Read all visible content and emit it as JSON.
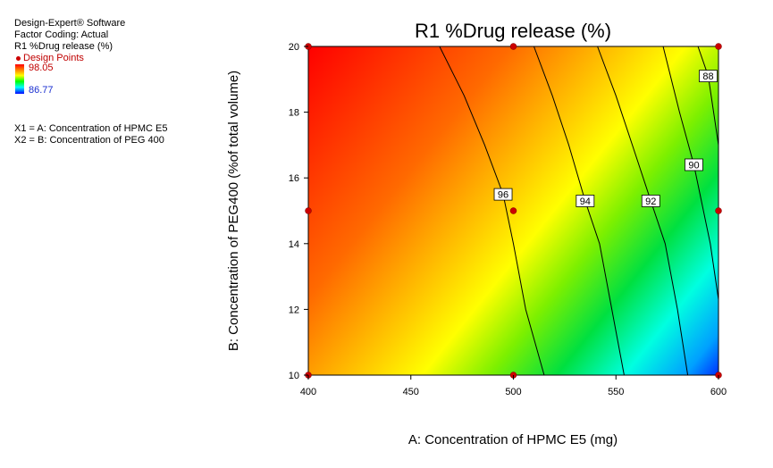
{
  "sidebar": {
    "software": "Design-Expert® Software",
    "factor_coding": "Factor Coding: Actual",
    "response": "R1 %Drug release (%)",
    "design_points_label": "Design Points",
    "scale_max": "98.05",
    "scale_min": "86.77",
    "x1_def": "X1 = A: Concentration of HPMC E5",
    "x2_def": "X2 = B: Concentration of PEG 400"
  },
  "colors": {
    "scale": [
      "#ff0000",
      "#ff6600",
      "#ffcc00",
      "#ffff00",
      "#66ff00",
      "#00e000",
      "#00ffff",
      "#0000ff"
    ],
    "design_point": "#cc0000"
  },
  "chart_data": {
    "type": "contour",
    "title": "R1 %Drug release (%)",
    "xlabel": "A: Concentration of HPMC E5 (mg)",
    "ylabel": "B: Concentration of PEG400 (%of total volume)",
    "xlim": [
      400,
      600
    ],
    "ylim": [
      10,
      20
    ],
    "x_ticks": [
      400,
      450,
      500,
      550,
      600
    ],
    "y_ticks": [
      10,
      12,
      14,
      16,
      18,
      20
    ],
    "z_range": [
      86.77,
      98.05
    ],
    "contours": [
      {
        "level": "96",
        "points": [
          [
            515,
            10
          ],
          [
            506,
            12
          ],
          [
            500,
            14
          ],
          [
            495,
            15.5
          ],
          [
            486,
            17
          ],
          [
            476,
            18.5
          ],
          [
            464,
            20
          ]
        ]
      },
      {
        "level": "94",
        "points": [
          [
            554,
            10
          ],
          [
            548,
            12
          ],
          [
            542,
            14
          ],
          [
            535,
            15.3
          ],
          [
            527,
            17
          ],
          [
            519,
            18.5
          ],
          [
            510,
            20
          ]
        ]
      },
      {
        "level": "92",
        "points": [
          [
            585,
            10
          ],
          [
            580,
            12
          ],
          [
            574,
            14
          ],
          [
            567,
            15.3
          ],
          [
            558,
            17
          ],
          [
            550,
            18.5
          ],
          [
            541,
            20
          ]
        ]
      },
      {
        "level": "90",
        "points": [
          [
            600,
            12.3
          ],
          [
            596,
            14
          ],
          [
            588,
            16.4
          ],
          [
            581,
            18
          ],
          [
            573,
            20
          ]
        ]
      },
      {
        "level": "88",
        "points": [
          [
            600,
            17
          ],
          [
            595,
            19.1
          ],
          [
            590,
            20
          ]
        ]
      }
    ],
    "design_points": [
      [
        400,
        10
      ],
      [
        500,
        10
      ],
      [
        600,
        10
      ],
      [
        400,
        15
      ],
      [
        500,
        15
      ],
      [
        600,
        15
      ],
      [
        400,
        20
      ],
      [
        500,
        20
      ],
      [
        600,
        20
      ]
    ]
  }
}
